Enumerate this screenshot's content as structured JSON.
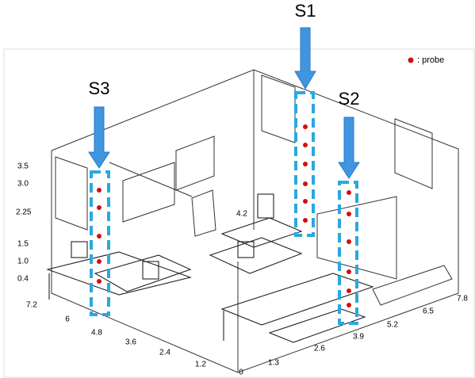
{
  "legend": {
    "label": ": probe"
  },
  "streams": [
    {
      "label": "S1"
    },
    {
      "label": "S2"
    },
    {
      "label": "S3"
    }
  ],
  "height_axis": {
    "labels": [
      "3.5",
      "3.0",
      "2.25",
      "1.5",
      "1.0",
      "0.4"
    ]
  },
  "corner_label": "4.2",
  "left_floor_axis": {
    "labels": [
      "7.2",
      "6",
      "4.8",
      "3.6",
      "2.4",
      "1.2",
      "0"
    ]
  },
  "right_floor_axis": {
    "labels": [
      "1.3",
      "2.6",
      "3.9",
      "5.2",
      "6.5",
      "7.8"
    ]
  }
}
